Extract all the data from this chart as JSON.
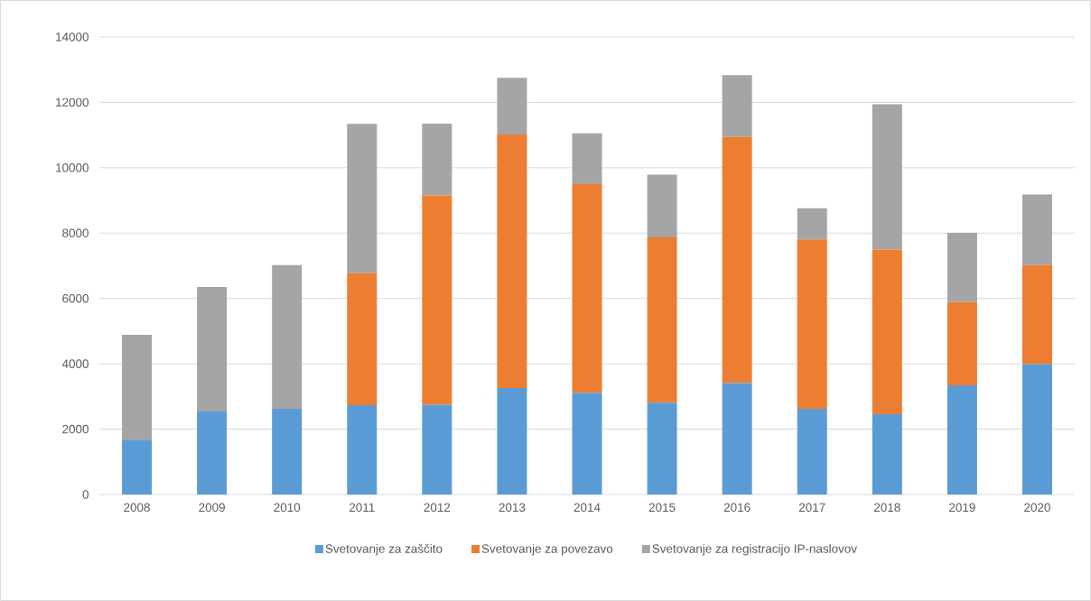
{
  "chart_data": {
    "type": "bar",
    "stacked": true,
    "categories": [
      "2008",
      "2009",
      "2010",
      "2011",
      "2012",
      "2013",
      "2014",
      "2015",
      "2016",
      "2017",
      "2018",
      "2019",
      "2020"
    ],
    "series": [
      {
        "name": "Svetovanje za zaščito",
        "color": "#5b9bd5",
        "values": [
          1680,
          2540,
          2620,
          2730,
          2750,
          3260,
          3110,
          2810,
          3410,
          2620,
          2460,
          3340,
          3990
        ]
      },
      {
        "name": "Svetovanje za povezavo",
        "color": "#ed7d31",
        "values": [
          0,
          0,
          0,
          4040,
          6400,
          7760,
          6390,
          5060,
          7530,
          5190,
          5040,
          2550,
          3030
        ]
      },
      {
        "name": "Svetovanje za registracijo IP-naslovov",
        "color": "#a5a5a5",
        "values": [
          3210,
          3810,
          4400,
          4570,
          2200,
          1730,
          1550,
          1920,
          1890,
          950,
          4440,
          2120,
          2160
        ]
      }
    ],
    "ylim": [
      0,
      14000
    ],
    "yticks": [
      0,
      2000,
      4000,
      6000,
      8000,
      10000,
      12000,
      14000
    ],
    "grid": "y",
    "legend": "bottom"
  }
}
